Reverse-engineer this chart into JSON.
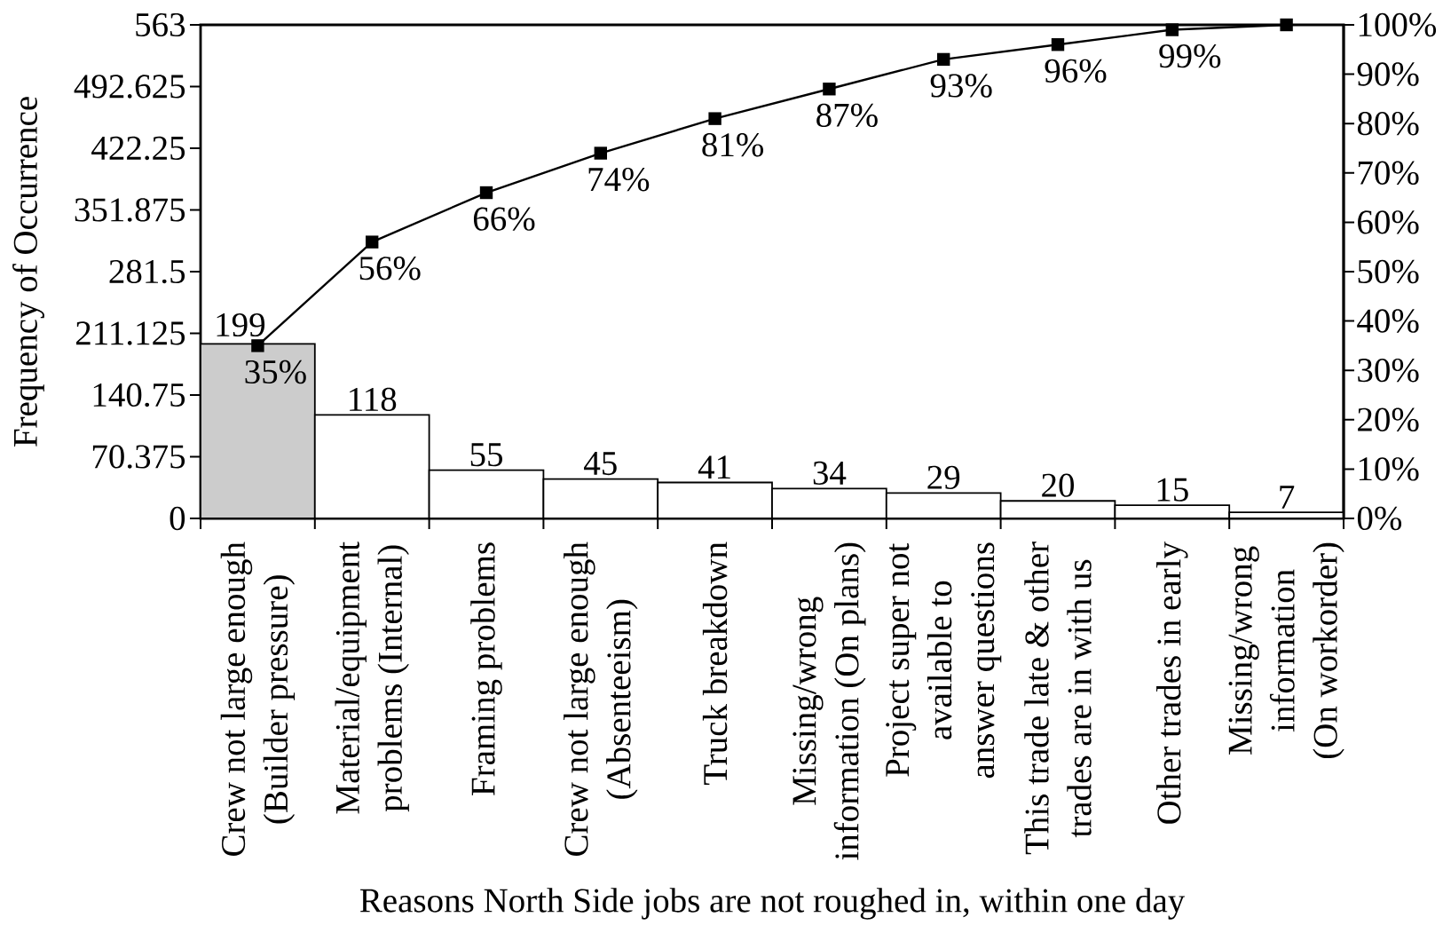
{
  "chart_data": {
    "type": "bar",
    "xlabel": "Reasons North Side jobs are not roughed in, within one day",
    "ylabel": "Frequency of Occurrence",
    "categories": [
      "Crew not large enough (Builder pressure)",
      "Material/equipment problems (Internal)",
      "Framing problems",
      "Crew not large enough (Absenteeism)",
      "Truck breakdown",
      "Missing/wrong information (On plans)",
      "Project super not available to answer questions",
      "This trade late & other trades are in with us",
      "Other trades in early",
      "Missing/wrong information (On workorder)"
    ],
    "series": [
      {
        "values": [
          199,
          118,
          55,
          45,
          41,
          34,
          29,
          20,
          15,
          7
        ],
        "colors": [
          "#cccccc",
          "#ffffff",
          "#ffffff",
          "#ffffff",
          "#ffffff",
          "#ffffff",
          "#ffffff",
          "#ffffff",
          "#ffffff",
          "#ffffff"
        ],
        "value_labels": [
          "199",
          "118",
          "55",
          "45",
          "41",
          "34",
          "29",
          "20",
          "15",
          "7"
        ]
      },
      {
        "type": "line",
        "axis": "y2",
        "values": [
          35,
          56,
          66,
          74,
          81,
          87,
          93,
          96,
          99,
          100
        ],
        "color": "#000000",
        "marker": "square",
        "value_labels": [
          "35%",
          "56%",
          "66%",
          "74%",
          "81%",
          "87%",
          "93%",
          "96%",
          "99%",
          null
        ]
      }
    ],
    "ylim": [
      0,
      563
    ],
    "yticks": [
      0,
      70.375,
      140.75,
      211.125,
      281.5,
      351.875,
      422.25,
      492.625,
      563
    ],
    "y2lim": [
      0,
      100
    ],
    "y2ticks": [
      {
        "value": 0,
        "label": "0%"
      },
      {
        "value": 10,
        "label": "10%"
      },
      {
        "value": 20,
        "label": "20%"
      },
      {
        "value": 30,
        "label": "30%"
      },
      {
        "value": 40,
        "label": "40%"
      },
      {
        "value": 50,
        "label": "50%"
      },
      {
        "value": 60,
        "label": "60%"
      },
      {
        "value": 70,
        "label": "70%"
      },
      {
        "value": 80,
        "label": "80%"
      },
      {
        "value": 90,
        "label": "90%"
      },
      {
        "value": 100,
        "label": "100%"
      }
    ]
  }
}
